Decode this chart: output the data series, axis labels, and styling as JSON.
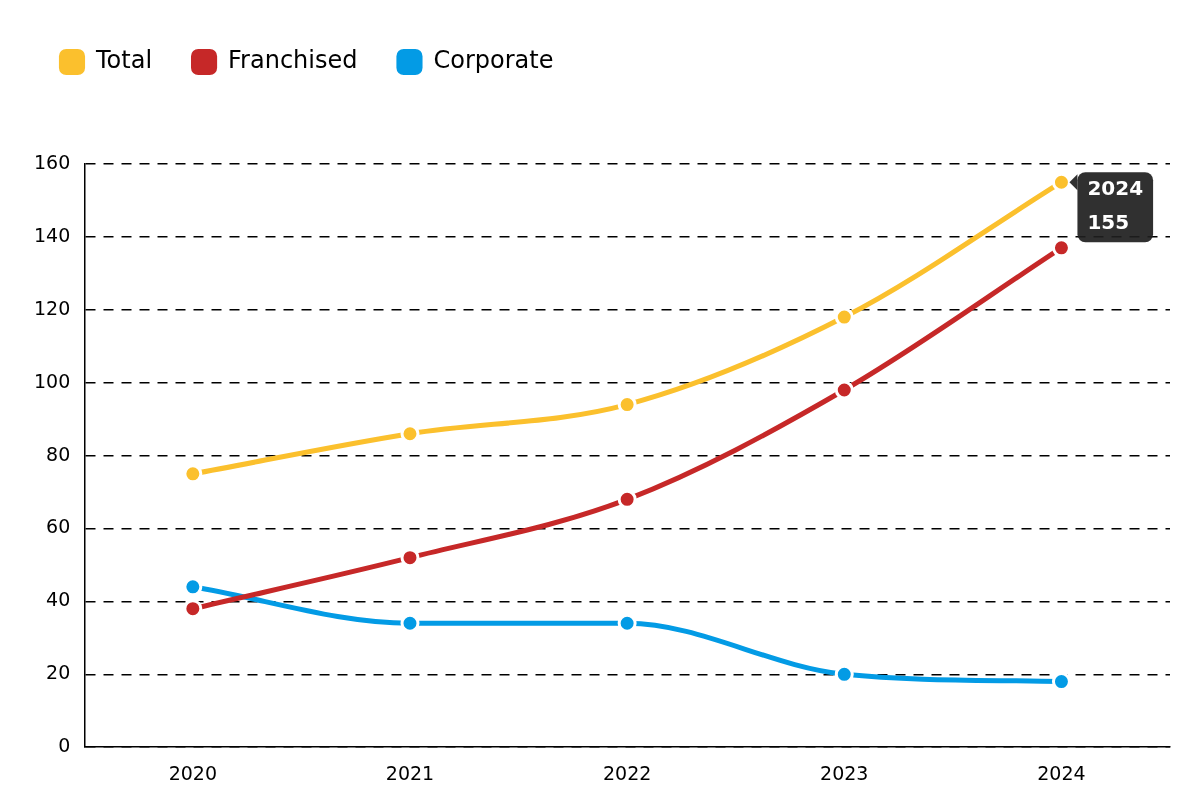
{
  "chart_data": {
    "type": "line",
    "categories": [
      "2020",
      "2021",
      "2022",
      "2023",
      "2024"
    ],
    "series": [
      {
        "name": "Total",
        "color": "#fbc02d",
        "values": [
          75,
          86,
          94,
          118,
          155
        ],
        "value_labels": [
          null,
          null,
          null,
          null,
          "155"
        ]
      },
      {
        "name": "Franchised",
        "color": "#c62828",
        "values": [
          38,
          52,
          68,
          98,
          137
        ]
      },
      {
        "name": "Corporate",
        "color": "#039be5",
        "values": [
          44,
          34,
          34,
          20,
          18
        ]
      }
    ],
    "annotations": [
      {
        "text": "2024",
        "x": "2024",
        "y": 155
      }
    ],
    "ylim": [
      0,
      160
    ],
    "yticks": [
      0,
      20,
      40,
      60,
      80,
      100,
      120,
      140,
      160
    ],
    "grid": "y",
    "legend": "top left",
    "marker": "circle",
    "line_style": "solid"
  }
}
